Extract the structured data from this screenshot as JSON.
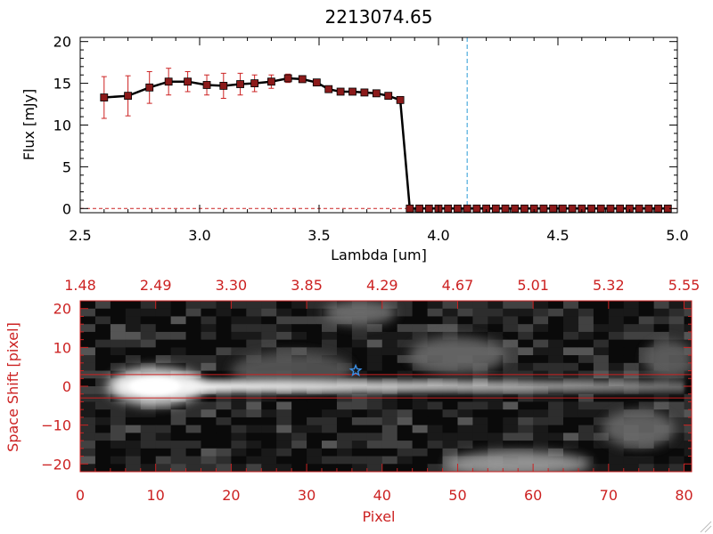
{
  "chart_data": [
    {
      "type": "line",
      "title": "2213074.65",
      "xlabel": "Lambda [um]",
      "ylabel": "Flux [mJy]",
      "xlim": [
        2.5,
        5.0
      ],
      "ylim": [
        -0.5,
        20.5
      ],
      "xticks": [
        "2.5",
        "3.0",
        "3.5",
        "4.0",
        "4.5",
        "5.0"
      ],
      "yticks": [
        "0",
        "5",
        "10",
        "15",
        "20"
      ],
      "grid": false,
      "colors": {
        "line": "#000000",
        "marker": "#8b1a1a",
        "errorbar": "#cc2222",
        "vline": "#2a9bd6",
        "zero_line": "#cc2222"
      },
      "vline_x": 4.12,
      "series": [
        {
          "x": [
            2.6,
            2.7,
            2.79,
            2.87,
            2.95,
            3.03,
            3.1,
            3.17,
            3.23,
            3.3,
            3.37,
            3.43,
            3.49,
            3.54,
            3.59,
            3.64,
            3.69,
            3.74,
            3.79,
            3.84,
            3.88,
            3.92,
            3.96,
            4.0,
            4.04,
            4.08,
            4.12,
            4.16,
            4.2,
            4.24,
            4.28,
            4.32,
            4.36,
            4.4,
            4.44,
            4.48,
            4.52,
            4.56,
            4.6,
            4.64,
            4.68,
            4.72,
            4.76,
            4.8,
            4.84,
            4.88,
            4.92,
            4.96
          ],
          "y": [
            13.3,
            13.5,
            14.5,
            15.2,
            15.2,
            14.8,
            14.7,
            14.9,
            15.0,
            15.2,
            15.6,
            15.5,
            15.1,
            14.3,
            14.0,
            14.0,
            13.9,
            13.8,
            13.5,
            13.0,
            0,
            0,
            0,
            0,
            0,
            0,
            0,
            0,
            0,
            0,
            0,
            0,
            0,
            0,
            0,
            0,
            0,
            0,
            0,
            0,
            0,
            0,
            0,
            0,
            0,
            0,
            0,
            0
          ],
          "yerr": [
            2.5,
            2.4,
            1.9,
            1.6,
            1.2,
            1.2,
            1.5,
            1.3,
            1.0,
            0.8,
            0.5,
            0.4,
            0.3,
            0.3,
            0.3,
            0.3,
            0.3,
            0.3,
            0.3,
            0.3,
            0,
            0,
            0,
            0,
            0,
            0,
            0,
            0,
            0,
            0,
            0,
            0,
            0,
            0,
            0,
            0,
            0,
            0,
            0,
            0,
            0,
            0,
            0,
            0,
            0,
            0,
            0,
            0
          ]
        }
      ]
    },
    {
      "type": "heatmap",
      "xlabel": "Pixel",
      "ylabel": "Space Shift [pixel]",
      "xlim": [
        0,
        81
      ],
      "ylim": [
        -22,
        22
      ],
      "xticks": [
        "0",
        "10",
        "20",
        "30",
        "40",
        "50",
        "60",
        "70",
        "80"
      ],
      "yticks": [
        "−20",
        "−10",
        "0",
        "10",
        "20"
      ],
      "top_ticks": [
        "1.48",
        "2.49",
        "3.30",
        "3.85",
        "4.29",
        "4.67",
        "5.01",
        "5.32",
        "5.55"
      ],
      "colors": {
        "axes": "#cc2222",
        "source_marker": "#3b8fe6",
        "aperture_line": "#cc2222"
      },
      "aperture_y": [
        -3,
        3
      ],
      "source_marker": {
        "x": 36.5,
        "y": 4
      },
      "trace": {
        "y_center": 0,
        "x_start": 5,
        "x_end": 80,
        "peak_x": 10
      },
      "blobs": [
        {
          "x": 10,
          "y": 0,
          "rx": 4,
          "ry": 3,
          "level": 0.95
        },
        {
          "x": 37,
          "y": 19,
          "rx": 3,
          "ry": 2,
          "level": 0.35
        },
        {
          "x": 50,
          "y": 8,
          "rx": 4,
          "ry": 3,
          "level": 0.3
        },
        {
          "x": 58,
          "y": -20,
          "rx": 6,
          "ry": 2,
          "level": 0.55
        },
        {
          "x": 74,
          "y": -11,
          "rx": 3,
          "ry": 3,
          "level": 0.3
        },
        {
          "x": 78,
          "y": 7,
          "rx": 2,
          "ry": 3,
          "level": 0.25
        },
        {
          "x": 28,
          "y": 4,
          "rx": 5,
          "ry": 3,
          "level": 0.22
        }
      ]
    }
  ]
}
